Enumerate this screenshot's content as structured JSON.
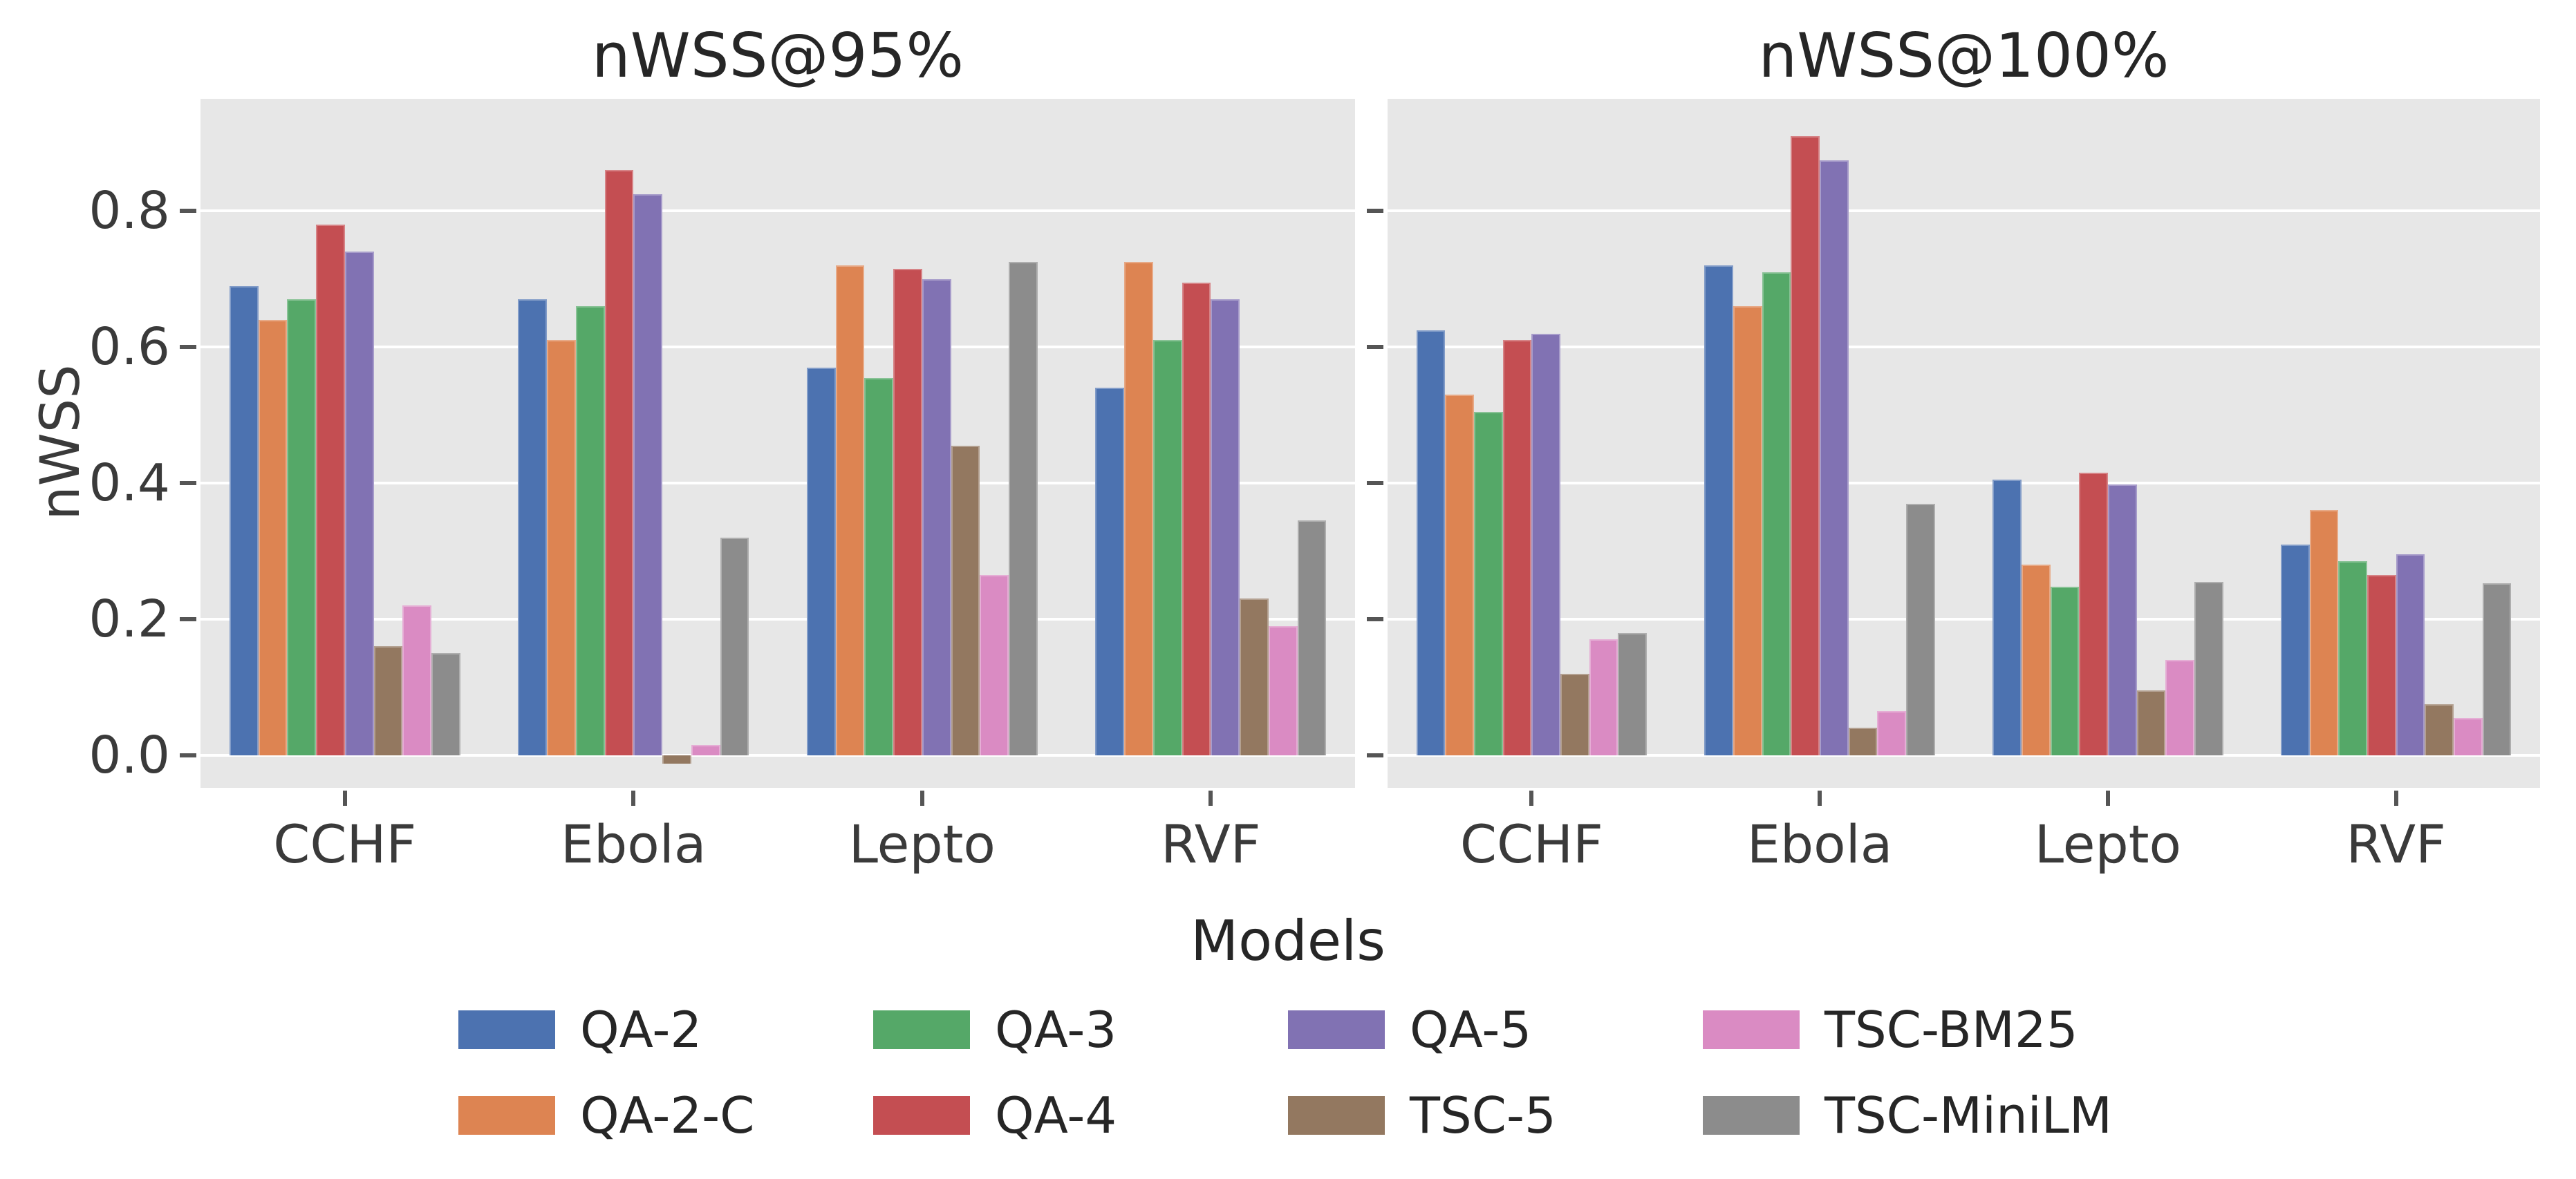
{
  "style": {
    "figure_background": "#ffffff",
    "plot_background": "#e7e7e7",
    "grid_color": "#ffffff",
    "title_color": "#262626",
    "tick_label_color": "#3a3a3a",
    "tick_mark_color": "#555555"
  },
  "y_axis": {
    "label": "nWSS",
    "ticks": [
      "0.0",
      "0.2",
      "0.4",
      "0.6",
      "0.8"
    ],
    "tick_values": [
      0.0,
      0.2,
      0.4,
      0.6,
      0.8
    ]
  },
  "x_axis": {
    "categories": [
      "CCHF",
      "Ebola",
      "Lepto",
      "RVF"
    ]
  },
  "legend": {
    "title": "Models",
    "position": "bottom-center",
    "items": [
      {
        "label": "QA-2",
        "color": "#4C72B0"
      },
      {
        "label": "QA-3",
        "color": "#55A868"
      },
      {
        "label": "QA-5",
        "color": "#8172B3"
      },
      {
        "label": "TSC-BM25",
        "color": "#DA8BC3"
      },
      {
        "label": "QA-2-C",
        "color": "#DD8452"
      },
      {
        "label": "QA-4",
        "color": "#C44E52"
      },
      {
        "label": "TSC-5",
        "color": "#937860"
      },
      {
        "label": "TSC-MiniLM",
        "color": "#8C8C8C"
      }
    ]
  },
  "chart_data": [
    {
      "type": "bar",
      "title": "nWSS@95%",
      "xlabel": "",
      "ylabel": "nWSS",
      "categories": [
        "CCHF",
        "Ebola",
        "Lepto",
        "RVF"
      ],
      "ylim": [
        -0.048,
        0.965
      ],
      "grid": true,
      "show_ytick_labels": true,
      "series": [
        {
          "name": "QA-2",
          "color": "#4C72B0",
          "values": [
            0.69,
            0.67,
            0.57,
            0.54
          ]
        },
        {
          "name": "QA-2-C",
          "color": "#DD8452",
          "values": [
            0.64,
            0.61,
            0.72,
            0.725
          ]
        },
        {
          "name": "QA-3",
          "color": "#55A868",
          "values": [
            0.67,
            0.66,
            0.555,
            0.61
          ]
        },
        {
          "name": "QA-4",
          "color": "#C44E52",
          "values": [
            0.78,
            0.86,
            0.715,
            0.695
          ]
        },
        {
          "name": "QA-5",
          "color": "#8172B3",
          "values": [
            0.74,
            0.825,
            0.7,
            0.67
          ]
        },
        {
          "name": "TSC-5",
          "color": "#937860",
          "values": [
            0.16,
            -0.012,
            0.455,
            0.23
          ]
        },
        {
          "name": "TSC-BM25",
          "color": "#DA8BC3",
          "values": [
            0.22,
            0.015,
            0.265,
            0.19
          ]
        },
        {
          "name": "TSC-MiniLM",
          "color": "#8C8C8C",
          "values": [
            0.15,
            0.32,
            0.725,
            0.345
          ]
        }
      ]
    },
    {
      "type": "bar",
      "title": "nWSS@100%",
      "xlabel": "",
      "ylabel": "nWSS",
      "categories": [
        "CCHF",
        "Ebola",
        "Lepto",
        "RVF"
      ],
      "ylim": [
        -0.048,
        0.965
      ],
      "grid": true,
      "show_ytick_labels": false,
      "series": [
        {
          "name": "QA-2",
          "color": "#4C72B0",
          "values": [
            0.625,
            0.72,
            0.405,
            0.31
          ]
        },
        {
          "name": "QA-2-C",
          "color": "#DD8452",
          "values": [
            0.53,
            0.66,
            0.28,
            0.36
          ]
        },
        {
          "name": "QA-3",
          "color": "#55A868",
          "values": [
            0.505,
            0.71,
            0.248,
            0.285
          ]
        },
        {
          "name": "QA-4",
          "color": "#C44E52",
          "values": [
            0.61,
            0.91,
            0.415,
            0.265
          ]
        },
        {
          "name": "QA-5",
          "color": "#8172B3",
          "values": [
            0.62,
            0.875,
            0.398,
            0.295
          ]
        },
        {
          "name": "TSC-5",
          "color": "#937860",
          "values": [
            0.12,
            0.04,
            0.095,
            0.075
          ]
        },
        {
          "name": "TSC-BM25",
          "color": "#DA8BC3",
          "values": [
            0.17,
            0.065,
            0.14,
            0.055
          ]
        },
        {
          "name": "TSC-MiniLM",
          "color": "#8C8C8C",
          "values": [
            0.18,
            0.37,
            0.255,
            0.253
          ]
        }
      ]
    }
  ]
}
